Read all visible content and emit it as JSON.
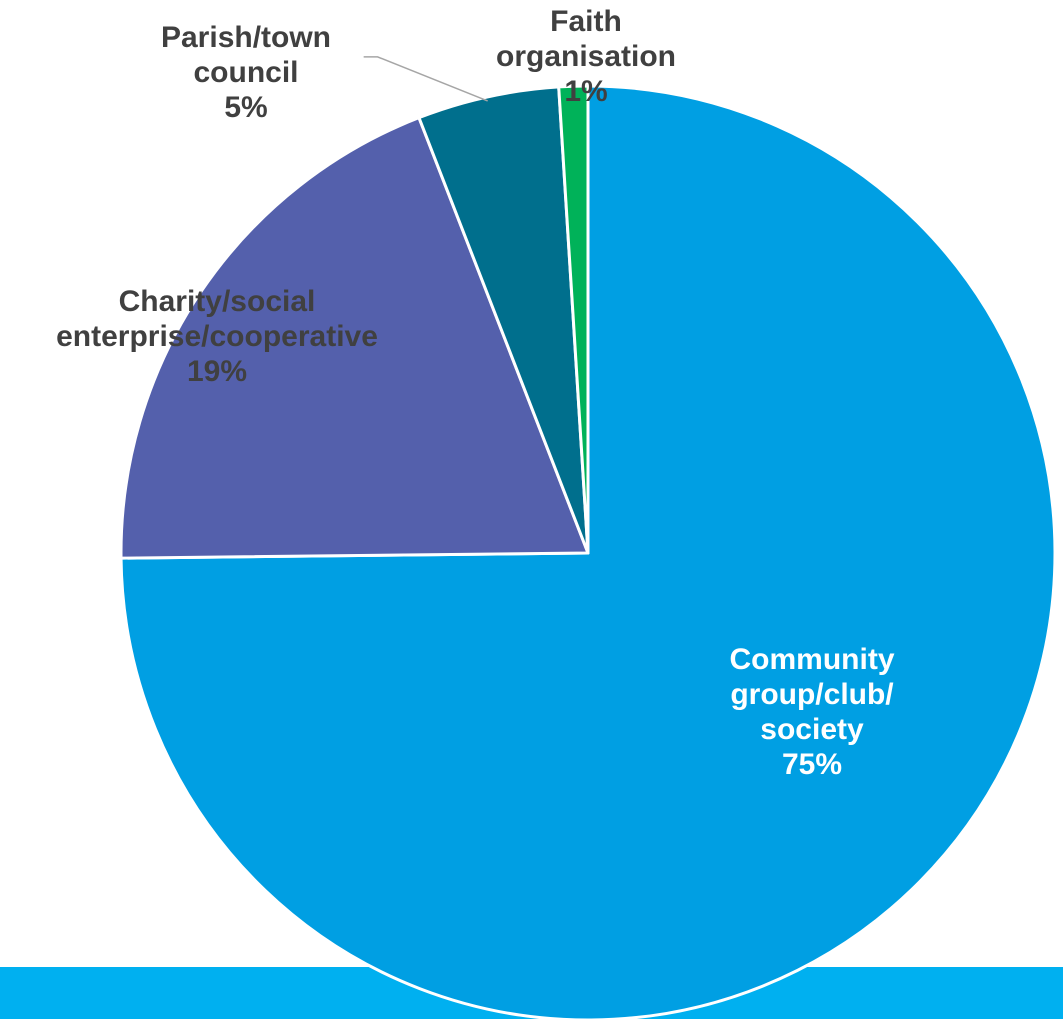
{
  "chart_data": {
    "type": "pie",
    "slices": [
      {
        "name_lines": [
          "Community",
          "group/club/",
          "society"
        ],
        "value_label": "75%",
        "value": 74.9,
        "color": "#009fe3"
      },
      {
        "name_lines": [
          "Charity/social",
          "enterprise/cooperative"
        ],
        "value_label": "19%",
        "value": 19.3,
        "color": "#5460ac"
      },
      {
        "name_lines": [
          "Parish/town",
          "council"
        ],
        "value_label": "5%",
        "value": 4.9,
        "color": "#006f8d"
      },
      {
        "name_lines": [
          "Faith",
          "organisation"
        ],
        "value_label": "1%",
        "value": 1.0,
        "color": "#00b259"
      }
    ],
    "start_angle_deg": 0,
    "direction": "clockwise"
  },
  "colors": {
    "bottom_band": "#00b0f0",
    "label_text": "#404040",
    "label_text_inside": "#ffffff",
    "slice_border": "#ffffff",
    "leader_line": "#a6a6a6"
  }
}
